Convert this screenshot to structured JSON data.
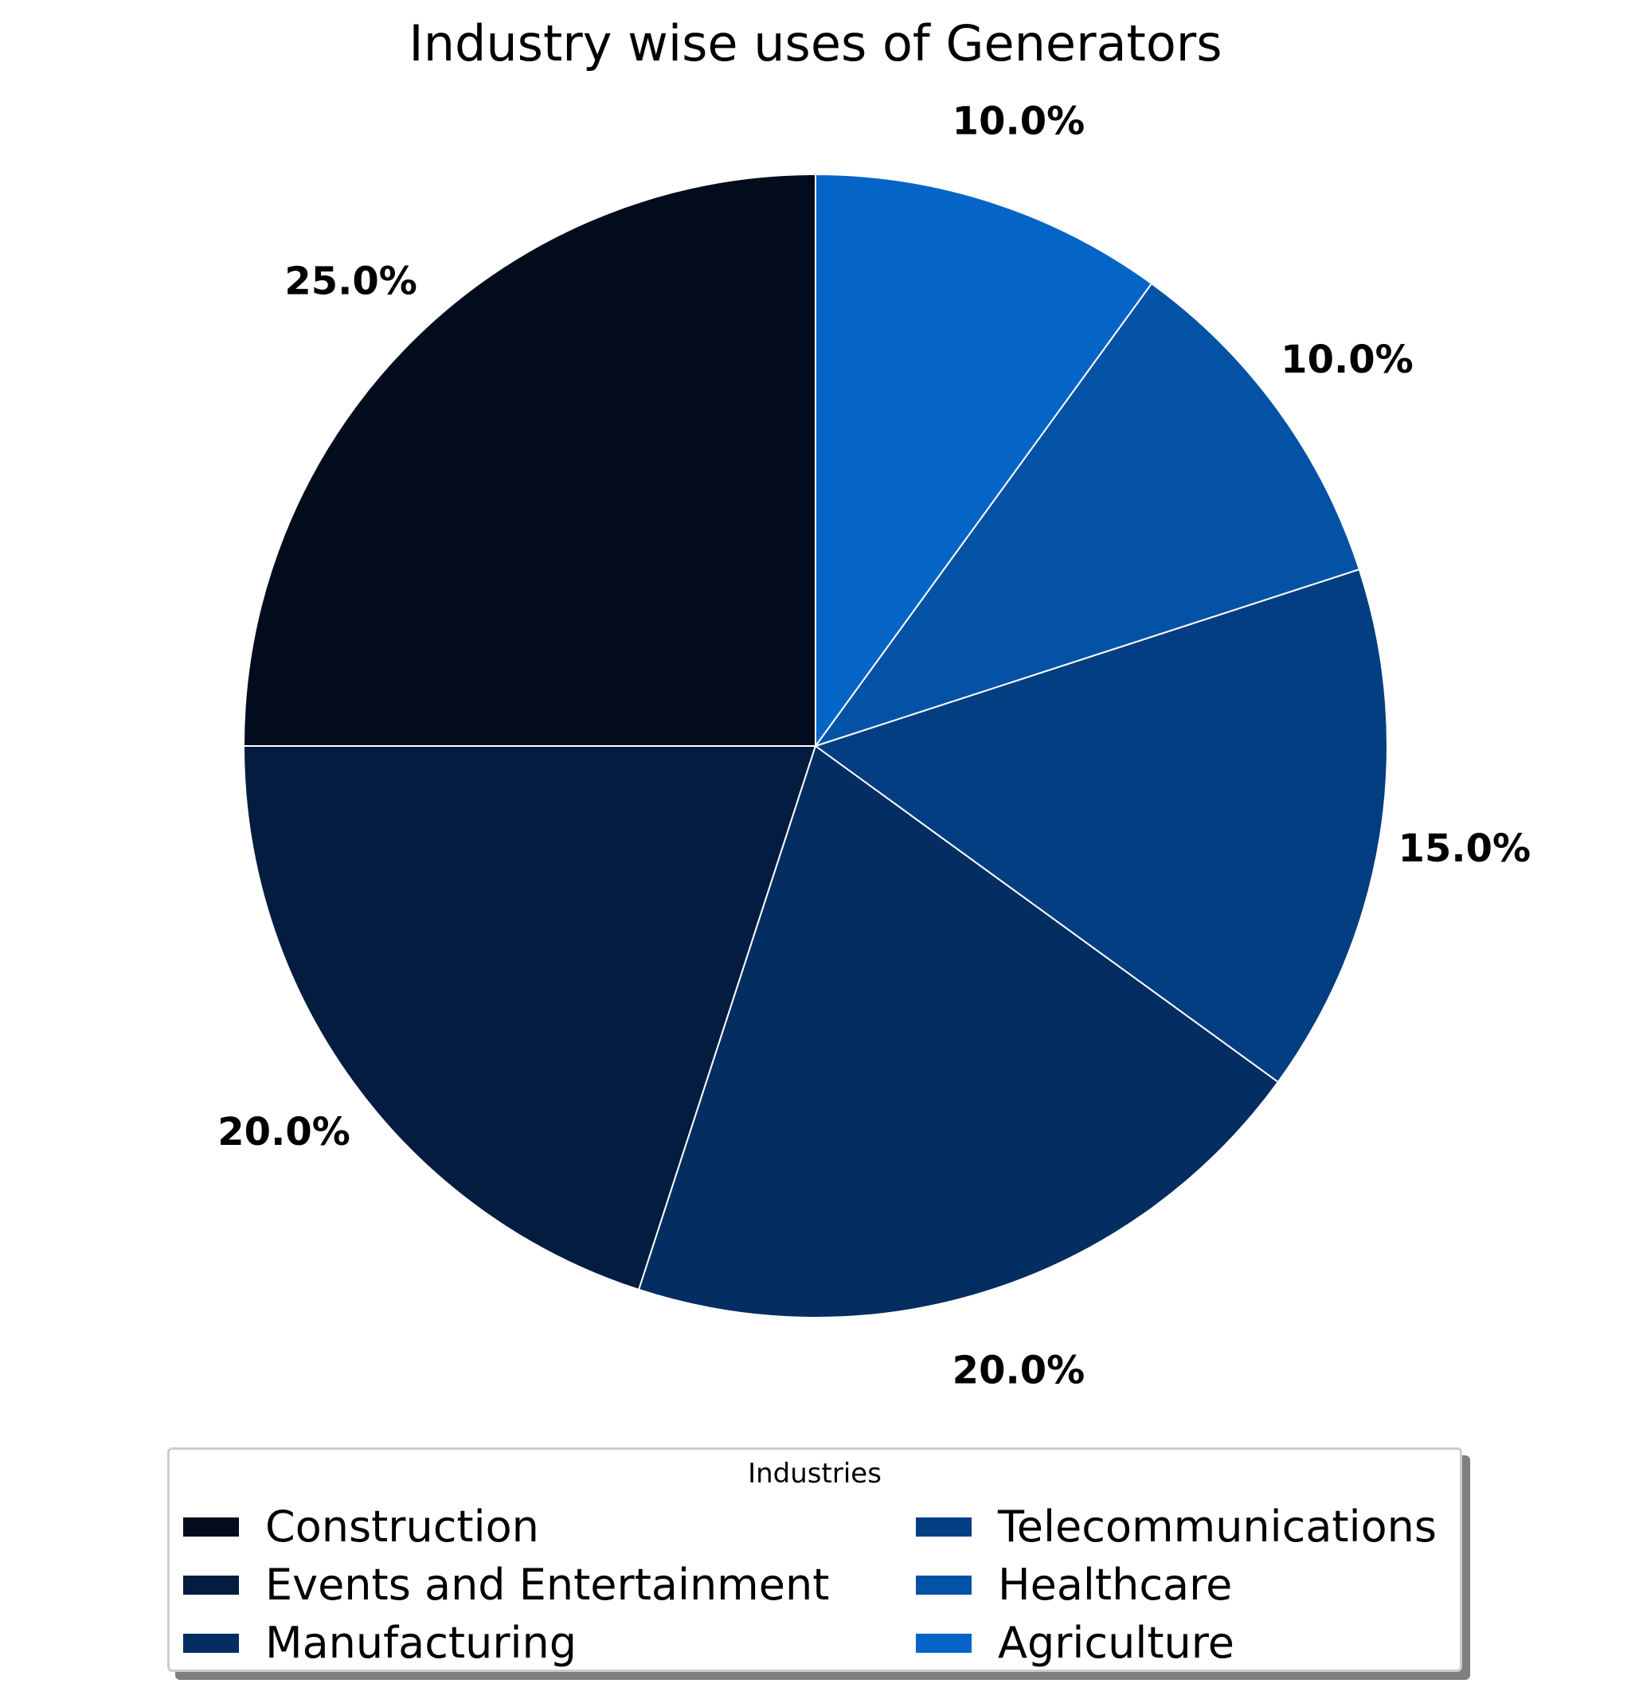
{
  "chart_data": {
    "type": "pie",
    "title": "Industry wise uses of Generators",
    "legend_title": "Industries",
    "legend_placement": "bottom-center",
    "start_angle_deg": 90,
    "direction": "counterclockwise",
    "slices": [
      {
        "label": "Construction",
        "value": 25.0,
        "pct_label": "25.0%",
        "color": "#020c1c"
      },
      {
        "label": "Events and Entertainment",
        "value": 20.0,
        "pct_label": "20.0%",
        "color": "#031c40"
      },
      {
        "label": "Manufacturing",
        "value": 20.0,
        "pct_label": "20.0%",
        "color": "#042d61"
      },
      {
        "label": "Telecommunications",
        "value": 15.0,
        "pct_label": "15.0%",
        "color": "#033e83"
      },
      {
        "label": "Healthcare",
        "value": 10.0,
        "pct_label": "10.0%",
        "color": "#0452a6"
      },
      {
        "label": "Agriculture",
        "value": 10.0,
        "pct_label": "10.0%",
        "color": "#0565c6"
      }
    ]
  }
}
